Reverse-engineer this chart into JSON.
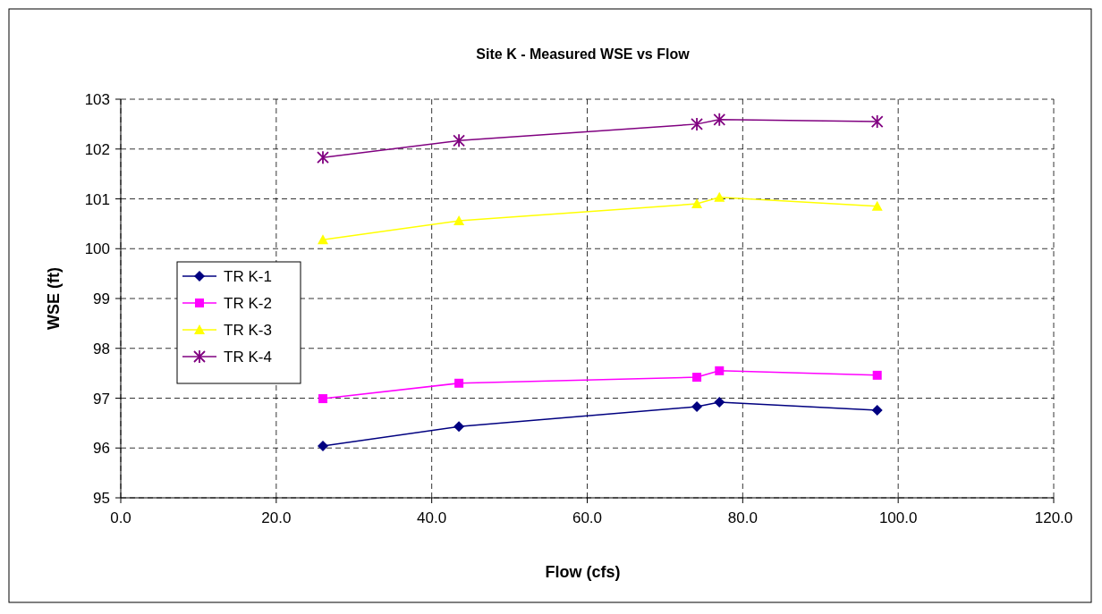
{
  "chart_data": {
    "type": "line",
    "title": "Site K - Measured WSE vs Flow",
    "xlabel": "Flow (cfs)",
    "ylabel": "WSE (ft)",
    "x": [
      26.0,
      43.5,
      74.1,
      77.0,
      97.3
    ],
    "series": [
      {
        "name": "TR K-1",
        "color": "#000080",
        "marker": "diamond",
        "values": [
          96.04,
          96.43,
          96.83,
          96.92,
          96.76
        ]
      },
      {
        "name": "TR K-2",
        "color": "#ff00ff",
        "marker": "square",
        "values": [
          96.99,
          97.3,
          97.42,
          97.55,
          97.46
        ]
      },
      {
        "name": "TR K-3",
        "color": "#ffff00",
        "marker": "triangle",
        "values": [
          100.18,
          100.56,
          100.9,
          101.03,
          100.85
        ]
      },
      {
        "name": "TR K-4",
        "color": "#800080",
        "marker": "cross",
        "values": [
          101.83,
          102.17,
          102.5,
          102.59,
          102.55
        ]
      }
    ],
    "xlim": [
      0,
      120
    ],
    "xticks": [
      {
        "value": 0,
        "label": "0.0"
      },
      {
        "value": 20,
        "label": "20.0"
      },
      {
        "value": 40,
        "label": "40.0"
      },
      {
        "value": 60,
        "label": "60.0"
      },
      {
        "value": 80,
        "label": "80.0"
      },
      {
        "value": 100,
        "label": "100.0"
      },
      {
        "value": 120,
        "label": "120.0"
      }
    ],
    "ylim": [
      95,
      103
    ],
    "yticks": [
      95,
      96,
      97,
      98,
      99,
      100,
      101,
      102,
      103
    ],
    "grid": true,
    "legend": "left",
    "line_style": "solid"
  }
}
